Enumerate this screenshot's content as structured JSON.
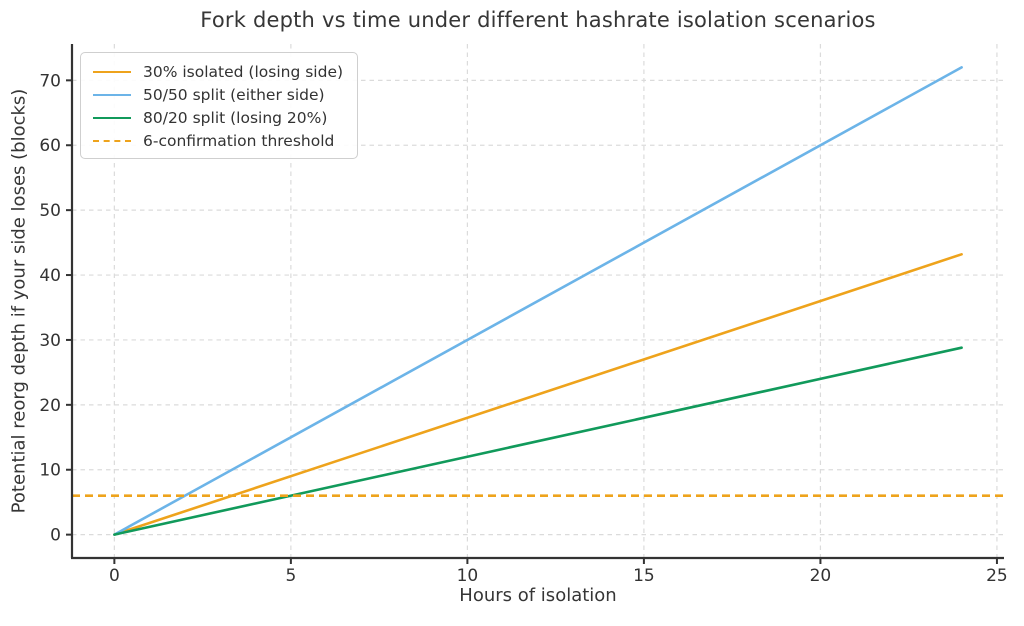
{
  "chart_data": {
    "type": "line",
    "title": "Fork depth vs time under different hashrate isolation scenarios",
    "xlabel": "Hours of isolation",
    "ylabel": "Potential reorg depth if your side loses (blocks)",
    "xlim": [
      -1.2,
      25.2
    ],
    "ylim": [
      -3.6,
      75.6
    ],
    "x_ticks": [
      0,
      5,
      10,
      15,
      20,
      25
    ],
    "y_ticks": [
      0,
      10,
      20,
      30,
      40,
      50,
      60,
      70
    ],
    "grid": true,
    "grid_style": "dashed",
    "legend_position": "upper left",
    "series": [
      {
        "label": "30% isolated (losing side)",
        "color": "#EEA31C",
        "style": "solid",
        "kind": "line",
        "x": [
          0,
          24
        ],
        "y": [
          0,
          43.2
        ]
      },
      {
        "label": "50/50 split (either side)",
        "color": "#6CB4E8",
        "style": "solid",
        "kind": "line",
        "x": [
          0,
          24
        ],
        "y": [
          0,
          72
        ]
      },
      {
        "label": "80/20 split (losing 20%)",
        "color": "#119A5B",
        "style": "solid",
        "kind": "line",
        "x": [
          0,
          24
        ],
        "y": [
          0,
          28.8
        ]
      },
      {
        "label": "6-confirmation threshold",
        "color": "#EEA31C",
        "style": "dashed",
        "kind": "hline",
        "y": 6
      }
    ],
    "colors": {
      "background": "#ffffff",
      "grid": "#dbdbdb",
      "spine": "#333333",
      "text": "#363636"
    }
  }
}
